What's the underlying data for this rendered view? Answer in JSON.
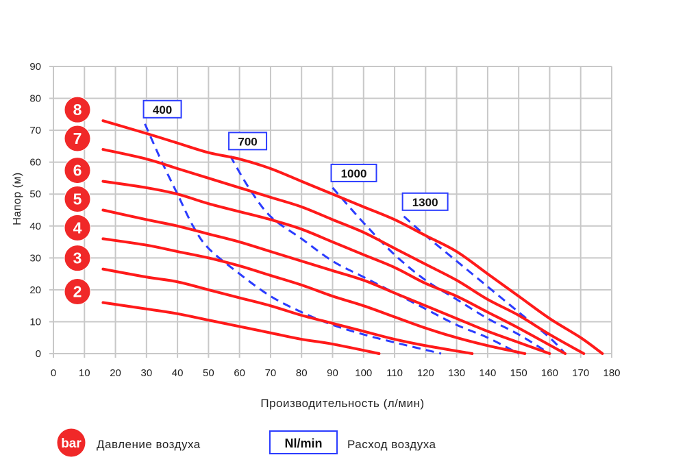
{
  "chart_data": {
    "type": "line",
    "title": "",
    "xlabel": "Производительность (л/мин)",
    "ylabel": "Напор (м)",
    "xlim": [
      0,
      180
    ],
    "ylim": [
      0,
      90
    ],
    "xticks": [
      0,
      10,
      20,
      30,
      40,
      50,
      60,
      70,
      80,
      90,
      100,
      110,
      120,
      130,
      140,
      150,
      160,
      170,
      180
    ],
    "yticks": [
      0,
      10,
      20,
      30,
      40,
      50,
      60,
      70,
      80,
      90
    ],
    "grid": true,
    "colors": {
      "pressure": "#ff1a1a",
      "airflow": "#2b3cff",
      "grid": "#c8c8c8"
    },
    "pressure_series": [
      {
        "name": "8",
        "points": [
          [
            16,
            73
          ],
          [
            30,
            69
          ],
          [
            40,
            66
          ],
          [
            50,
            63
          ],
          [
            60,
            61
          ],
          [
            70,
            58
          ],
          [
            80,
            54
          ],
          [
            90,
            50
          ],
          [
            100,
            46
          ],
          [
            110,
            42
          ],
          [
            120,
            37
          ],
          [
            130,
            32
          ],
          [
            140,
            25
          ],
          [
            150,
            18
          ],
          [
            160,
            11
          ],
          [
            170,
            5
          ],
          [
            177,
            0
          ]
        ]
      },
      {
        "name": "7",
        "points": [
          [
            16,
            64
          ],
          [
            30,
            61
          ],
          [
            40,
            58
          ],
          [
            50,
            55
          ],
          [
            60,
            52
          ],
          [
            70,
            49
          ],
          [
            80,
            46
          ],
          [
            90,
            42
          ],
          [
            100,
            38
          ],
          [
            110,
            33
          ],
          [
            120,
            28
          ],
          [
            130,
            23
          ],
          [
            140,
            17
          ],
          [
            150,
            12
          ],
          [
            160,
            6
          ],
          [
            171,
            0
          ]
        ]
      },
      {
        "name": "6",
        "points": [
          [
            16,
            54
          ],
          [
            30,
            52
          ],
          [
            40,
            50
          ],
          [
            50,
            47
          ],
          [
            60,
            44.5
          ],
          [
            70,
            42
          ],
          [
            80,
            39
          ],
          [
            90,
            35
          ],
          [
            100,
            31
          ],
          [
            110,
            27
          ],
          [
            120,
            22
          ],
          [
            130,
            18
          ],
          [
            140,
            13
          ],
          [
            150,
            8
          ],
          [
            165,
            0
          ]
        ]
      },
      {
        "name": "5",
        "points": [
          [
            16,
            45
          ],
          [
            30,
            42
          ],
          [
            40,
            40
          ],
          [
            50,
            37.5
          ],
          [
            60,
            35
          ],
          [
            70,
            32
          ],
          [
            80,
            29
          ],
          [
            90,
            26
          ],
          [
            100,
            23
          ],
          [
            110,
            19
          ],
          [
            120,
            15
          ],
          [
            130,
            11
          ],
          [
            140,
            7
          ],
          [
            150,
            3.5
          ],
          [
            160,
            0
          ]
        ]
      },
      {
        "name": "4",
        "points": [
          [
            16,
            36
          ],
          [
            30,
            34
          ],
          [
            40,
            32
          ],
          [
            50,
            30
          ],
          [
            60,
            27.5
          ],
          [
            70,
            24.5
          ],
          [
            80,
            21.5
          ],
          [
            90,
            18
          ],
          [
            100,
            15
          ],
          [
            110,
            11.5
          ],
          [
            120,
            8
          ],
          [
            130,
            5
          ],
          [
            140,
            2.5
          ],
          [
            152,
            0
          ]
        ]
      },
      {
        "name": "3",
        "points": [
          [
            16,
            26.5
          ],
          [
            30,
            24
          ],
          [
            40,
            22.5
          ],
          [
            50,
            20
          ],
          [
            60,
            17.5
          ],
          [
            70,
            15
          ],
          [
            80,
            12
          ],
          [
            90,
            9.5
          ],
          [
            100,
            7
          ],
          [
            110,
            4.5
          ],
          [
            120,
            2.5
          ],
          [
            135,
            0
          ]
        ]
      },
      {
        "name": "2",
        "points": [
          [
            16,
            16
          ],
          [
            30,
            14
          ],
          [
            40,
            12.5
          ],
          [
            50,
            10.5
          ],
          [
            60,
            8.5
          ],
          [
            70,
            6.5
          ],
          [
            80,
            4.5
          ],
          [
            90,
            3
          ],
          [
            105,
            0
          ]
        ]
      }
    ],
    "airflow_series": [
      {
        "name": "400",
        "points": [
          [
            29.5,
            72
          ],
          [
            35,
            60
          ],
          [
            40,
            50
          ],
          [
            45,
            40
          ],
          [
            50,
            33
          ],
          [
            60,
            25
          ],
          [
            70,
            18
          ],
          [
            80,
            13
          ],
          [
            90,
            9
          ],
          [
            100,
            6
          ],
          [
            110,
            3.5
          ],
          [
            125,
            0
          ]
        ]
      },
      {
        "name": "700",
        "points": [
          [
            57,
            62
          ],
          [
            63,
            52
          ],
          [
            70,
            43
          ],
          [
            80,
            36
          ],
          [
            90,
            29
          ],
          [
            100,
            24
          ],
          [
            110,
            19
          ],
          [
            120,
            14
          ],
          [
            130,
            9
          ],
          [
            140,
            5
          ],
          [
            150,
            0
          ]
        ]
      },
      {
        "name": "1000",
        "points": [
          [
            90,
            52
          ],
          [
            100,
            41
          ],
          [
            110,
            31
          ],
          [
            120,
            23
          ],
          [
            130,
            17
          ],
          [
            140,
            11
          ],
          [
            150,
            6
          ],
          [
            160,
            0
          ]
        ]
      },
      {
        "name": "1300",
        "points": [
          [
            113,
            43
          ],
          [
            120,
            37
          ],
          [
            130,
            29
          ],
          [
            140,
            21
          ],
          [
            150,
            13
          ],
          [
            160,
            5
          ],
          [
            165,
            0
          ]
        ]
      }
    ]
  },
  "legend": {
    "pressure_badge": "bar",
    "pressure_label": "Давление воздуха",
    "airflow_badge": "Nl/min",
    "airflow_label": "Расход воздуха"
  }
}
